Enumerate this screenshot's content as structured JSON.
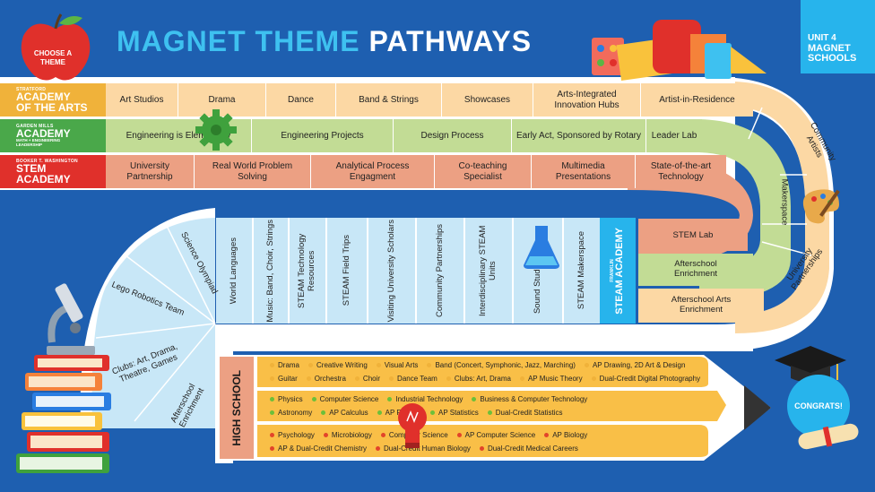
{
  "header": {
    "title_part1": "MAGNET THEME",
    "title_part2": "PATHWAYS",
    "unit_line1": "UNIT 4",
    "unit_line2": "MAGNET",
    "unit_line3": "SCHOOLS",
    "choose_theme": "CHOOSE A THEME"
  },
  "arts": {
    "label_small": "STRATFORD",
    "label_big1": "ACADEMY",
    "label_big2": "OF THE ARTS",
    "items": [
      "Art Studios",
      "Drama",
      "Dance",
      "Band & Strings",
      "Showcases",
      "Arts-Integrated Innovation Hubs",
      "Artist-in-Residence"
    ],
    "color": "#fcd8a4"
  },
  "engineering": {
    "label_small": "GARDEN MILLS",
    "label_big": "ACADEMY",
    "label_sub1": "MATH + ENGINEERING",
    "label_sub2": "LEADERSHIP",
    "items": [
      "Engineering is Elementary",
      "Engineering Projects",
      "Design Process",
      "Early Act, Sponsored by Rotary",
      "Leader Lab"
    ],
    "color": "#c2dc95"
  },
  "stem_academy": {
    "label_small": "BOOKER T. WASHINGTON",
    "label_big1": "STEM",
    "label_big2": "ACADEMY",
    "items": [
      "University Partnership",
      "Real World Problem Solving",
      "Analytical Process Engagment",
      "Co-teaching Specialist",
      "Multimedia Presentations",
      "State-of-the-art Technology"
    ],
    "color": "#eca083"
  },
  "curve_right": {
    "items": [
      "Community Artists",
      "Makerspace",
      "University Partnerships"
    ]
  },
  "middle": {
    "right_items": [
      "STEM Lab",
      "Afterschool Enrichment",
      "Afterschool Arts Enrichment"
    ],
    "columns": [
      "World Languages",
      "Music: Band, Choir, Strings",
      "STEAM Technology Resources",
      "STEAM Field Trips",
      "Visiting University Scholars",
      "Community Partnerships",
      "Interdisciplinary STEAM Units",
      "Sound Studio",
      "STEAM Makerspace"
    ],
    "franklin_small": "FRANKLIN",
    "franklin_big": "STEAM ACADEMY"
  },
  "left_fan": {
    "items": [
      "Science Olympiad",
      "Lego Robotics Team",
      "Clubs: Art, Drama, Theatre, Games",
      "Afterschool Enrichment"
    ]
  },
  "high_school": {
    "label": "HIGH SCHOOL",
    "arts_line1": [
      "Drama",
      "Creative Writing",
      "Visual Arts",
      "Band (Concert, Symphonic, Jazz, Marching)",
      "AP Drawing, 2D Art & Design"
    ],
    "arts_line2": [
      "Guitar",
      "Orchestra",
      "Choir",
      "Dance Team",
      "Clubs: Art, Drama",
      "AP Music Theory",
      "Dual-Credit Digital Photography"
    ],
    "stem_line1": [
      "Physics",
      "Computer Science",
      "Industrial Technology",
      "Business & Computer Technology"
    ],
    "stem_line2": [
      "Astronomy",
      "AP Calculus",
      "AP Physics",
      "AP Statistics",
      "Dual-Credit Statistics"
    ],
    "sci_line1": [
      "Psychology",
      "Microbiology",
      "Computer Science",
      "AP Computer Science",
      "AP Biology"
    ],
    "sci_line2": [
      "AP & Dual-Credit Chemistry",
      "Dual-Credit Human Biology",
      "Dual-Credit Medical Careers"
    ],
    "dot_colors": {
      "arts": "#f0b23a",
      "stem": "#6cbf3a",
      "sci": "#e2442a"
    }
  },
  "congrats": "CONGRATS!"
}
